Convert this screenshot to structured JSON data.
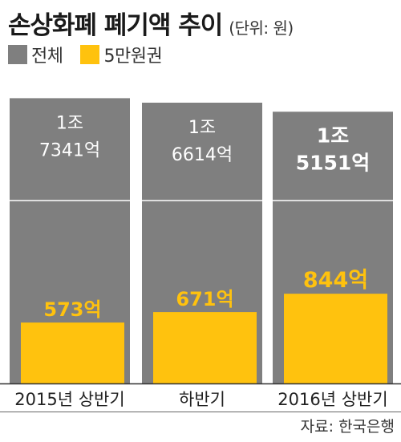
{
  "title": "손상화폐 폐기액 추이",
  "unit": "(단위: 원)",
  "legend": [
    {
      "label": "전체",
      "color": "#7f7f7f"
    },
    {
      "label": "5만원권",
      "color": "#ffc20e"
    }
  ],
  "source": "자료: 한국은행",
  "chart_data": {
    "type": "bar",
    "categories": [
      "2015년 상반기",
      "하반기",
      "2016년 상반기"
    ],
    "series": [
      {
        "name": "전체",
        "values": [
          17341,
          16614,
          15151
        ],
        "labels": [
          [
            "1조",
            "7341억"
          ],
          [
            "1조",
            "6614억"
          ],
          [
            "1조",
            "5151억"
          ]
        ],
        "color": "#7f7f7f"
      },
      {
        "name": "5만원권",
        "values": [
          573,
          671,
          844
        ],
        "labels": [
          "573억",
          "671억",
          "844억"
        ],
        "color": "#ffc20e"
      }
    ]
  }
}
